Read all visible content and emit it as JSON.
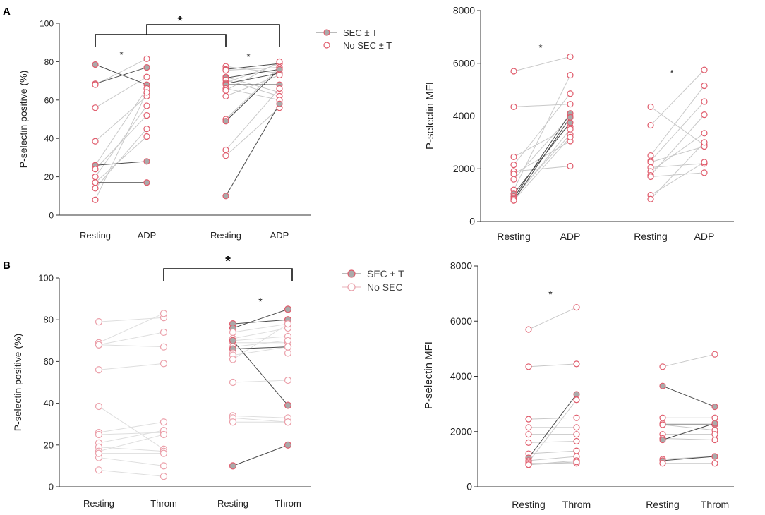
{
  "panel_labels": {
    "a": "A",
    "b": "B"
  },
  "colors": {
    "sec_line": "#4a4a4a",
    "no_sec_line": "#c8c8c8",
    "b_no_sec_line": "#dedede",
    "marker_edge": "#e05c6c",
    "sec_fill": "#aaaaaa",
    "no_sec_fill": "#ffffff",
    "axis": "#333333"
  },
  "chart_data": [
    {
      "id": "A-left",
      "type": "scatter",
      "ylabel": "P-selectin positive (%)",
      "ylim": [
        0,
        100
      ],
      "yticks": [
        0,
        20,
        40,
        60,
        80,
        100
      ],
      "categories": [
        "Resting",
        "ADP",
        "Resting",
        "ADP"
      ],
      "legend": {
        "sec": "SEC ± T",
        "no_sec": "No SEC ± T"
      },
      "group_bracket_star": "*",
      "group_stars": [
        "*",
        "*"
      ],
      "group1_pairs": [
        [
          78.5,
          68,
          "sec"
        ],
        [
          68.5,
          77,
          "sec"
        ],
        [
          68,
          81.5,
          "no"
        ],
        [
          56,
          72,
          "no"
        ],
        [
          38.5,
          62,
          "no"
        ],
        [
          26,
          66,
          "no"
        ],
        [
          26,
          28,
          "sec"
        ],
        [
          24,
          52,
          "no"
        ],
        [
          20,
          57,
          "no"
        ],
        [
          17,
          17,
          "sec"
        ],
        [
          17,
          41,
          "no"
        ],
        [
          14,
          45,
          "no"
        ],
        [
          8,
          64,
          "no"
        ]
      ],
      "group2_pairs": [
        [
          77.5,
          74,
          "no"
        ],
        [
          76,
          79,
          "sec"
        ],
        [
          75.5,
          77,
          "no"
        ],
        [
          72,
          64,
          "no"
        ],
        [
          71.5,
          76,
          "sec"
        ],
        [
          70.5,
          62,
          "no"
        ],
        [
          69,
          79,
          "no"
        ],
        [
          68.5,
          74,
          "sec"
        ],
        [
          68,
          68,
          "sec"
        ],
        [
          66,
          60,
          "no"
        ],
        [
          65,
          80,
          "no"
        ],
        [
          62,
          73,
          "no"
        ],
        [
          50,
          77,
          "no"
        ],
        [
          49,
          76,
          "sec"
        ],
        [
          34,
          66,
          "no"
        ],
        [
          31,
          56,
          "no"
        ],
        [
          10,
          58,
          "sec"
        ]
      ]
    },
    {
      "id": "A-right",
      "type": "scatter",
      "ylabel": "P-selectin  MFI",
      "ylim": [
        0,
        8000
      ],
      "yticks": [
        0,
        2000,
        4000,
        6000,
        8000
      ],
      "categories": [
        "Resting",
        "ADP",
        "Resting",
        "ADP"
      ],
      "group_stars": [
        "*",
        "*"
      ],
      "group1_pairs": [
        [
          5700,
          6250,
          "no"
        ],
        [
          4350,
          4450,
          "no"
        ],
        [
          2450,
          3600,
          "no"
        ],
        [
          2150,
          4850,
          "no"
        ],
        [
          1900,
          2100,
          "no"
        ],
        [
          1800,
          3050,
          "no"
        ],
        [
          1600,
          4000,
          "no"
        ],
        [
          1200,
          5550,
          "no"
        ],
        [
          1050,
          3750,
          "sec"
        ],
        [
          950,
          3300,
          "no"
        ],
        [
          900,
          4100,
          "sec"
        ],
        [
          850,
          3500,
          "no"
        ],
        [
          800,
          3950,
          "sec"
        ],
        [
          800,
          3200,
          "no"
        ]
      ],
      "group2_pairs": [
        [
          4350,
          2900,
          "no"
        ],
        [
          3650,
          5750,
          "no"
        ],
        [
          2500,
          5150,
          "no"
        ],
        [
          2300,
          4550,
          "no"
        ],
        [
          2250,
          2850,
          "no"
        ],
        [
          2050,
          2200,
          "no"
        ],
        [
          1900,
          3350,
          "no"
        ],
        [
          1750,
          4050,
          "no"
        ],
        [
          1700,
          1850,
          "no"
        ],
        [
          1000,
          2250,
          "no"
        ],
        [
          850,
          3000,
          "no"
        ]
      ]
    },
    {
      "id": "B-left",
      "type": "scatter",
      "ylabel": "P-selectin positive (%)",
      "ylim": [
        0,
        100
      ],
      "yticks": [
        0,
        20,
        40,
        60,
        80,
        100
      ],
      "categories": [
        "Resting",
        "Throm",
        "Resting",
        "Throm"
      ],
      "legend": {
        "sec": "SEC ± T",
        "no_sec": "No SEC"
      },
      "group_bracket_star": "*",
      "group_stars": [
        "",
        "*"
      ],
      "group1_pairs": [
        [
          79,
          81,
          "no"
        ],
        [
          69,
          83,
          "no"
        ],
        [
          68,
          74,
          "no"
        ],
        [
          68,
          67,
          "no"
        ],
        [
          56,
          59,
          "no"
        ],
        [
          38.5,
          18,
          "no"
        ],
        [
          26,
          31,
          "no"
        ],
        [
          25,
          26,
          "no"
        ],
        [
          21,
          27,
          "no"
        ],
        [
          19,
          17,
          "no"
        ],
        [
          17,
          25,
          "no"
        ],
        [
          14,
          10,
          "no"
        ],
        [
          8,
          5,
          "no"
        ],
        [
          16,
          16,
          "no"
        ]
      ],
      "group2_pairs": [
        [
          78,
          80,
          "sec"
        ],
        [
          76,
          85,
          "sec"
        ],
        [
          74,
          78,
          "no"
        ],
        [
          71,
          76,
          "no"
        ],
        [
          70,
          72,
          "no"
        ],
        [
          69,
          69,
          "no"
        ],
        [
          67,
          70,
          "no"
        ],
        [
          66,
          67,
          "sec"
        ],
        [
          64,
          64,
          "no"
        ],
        [
          63,
          67,
          "no"
        ],
        [
          61,
          78,
          "no"
        ],
        [
          50,
          51,
          "no"
        ],
        [
          70,
          39,
          "sec"
        ],
        [
          34,
          33,
          "no"
        ],
        [
          33,
          31,
          "no"
        ],
        [
          31,
          31,
          "no"
        ],
        [
          10,
          20,
          "sec"
        ]
      ]
    },
    {
      "id": "B-right",
      "type": "scatter",
      "ylabel": "P-selectin  MFI",
      "ylim": [
        0,
        8000
      ],
      "yticks": [
        0,
        2000,
        4000,
        6000,
        8000
      ],
      "categories": [
        "Resting",
        "Throm",
        "Resting",
        "Throm"
      ],
      "group_stars": [
        "*",
        ""
      ],
      "group1_pairs": [
        [
          5700,
          6500,
          "no"
        ],
        [
          4350,
          4450,
          "no"
        ],
        [
          2450,
          2500,
          "no"
        ],
        [
          2150,
          2150,
          "no"
        ],
        [
          1900,
          1900,
          "no"
        ],
        [
          1600,
          1650,
          "no"
        ],
        [
          1200,
          1300,
          "no"
        ],
        [
          1050,
          3350,
          "sec"
        ],
        [
          950,
          1100,
          "no"
        ],
        [
          900,
          3150,
          "no"
        ],
        [
          850,
          850,
          "no"
        ],
        [
          800,
          950,
          "no"
        ],
        [
          800,
          900,
          "no"
        ]
      ],
      "group2_pairs": [
        [
          4350,
          4800,
          "no"
        ],
        [
          3650,
          2900,
          "sec"
        ],
        [
          2500,
          2500,
          "no"
        ],
        [
          2300,
          2300,
          "no"
        ],
        [
          2250,
          2250,
          "sec"
        ],
        [
          2250,
          2050,
          "no"
        ],
        [
          1900,
          1900,
          "no"
        ],
        [
          1750,
          1700,
          "no"
        ],
        [
          1700,
          2300,
          "sec"
        ],
        [
          1000,
          1100,
          "no"
        ],
        [
          950,
          1100,
          "sec"
        ],
        [
          850,
          850,
          "no"
        ]
      ]
    }
  ]
}
